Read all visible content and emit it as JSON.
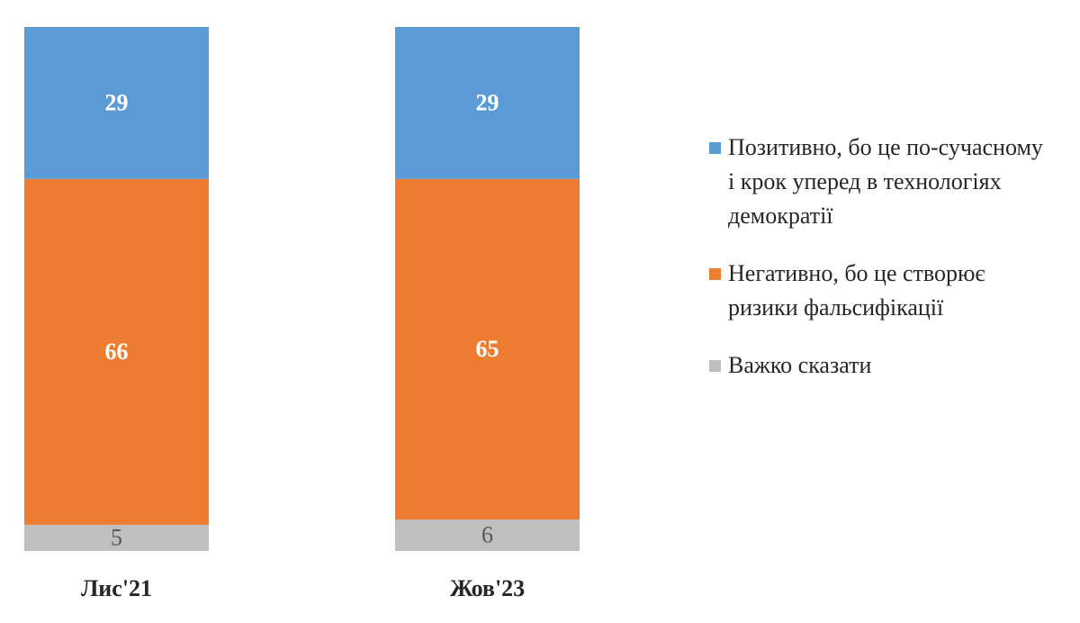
{
  "chart_data": {
    "type": "bar",
    "stacked": true,
    "categories": [
      "Лис'21",
      "Жов'23"
    ],
    "series": [
      {
        "name": "Позитивно, бо це по-сучасному і крок уперед в технологіях демократії",
        "color": "#5b9bd5",
        "values": [
          29,
          29
        ]
      },
      {
        "name": "Негативно, бо це створює ризики фальсифікації",
        "color": "#ed7d31",
        "values": [
          66,
          65
        ]
      },
      {
        "name": "Важко сказати",
        "color": "#bfbfbf",
        "values": [
          5,
          6
        ]
      }
    ],
    "ylim": [
      0,
      100
    ]
  }
}
